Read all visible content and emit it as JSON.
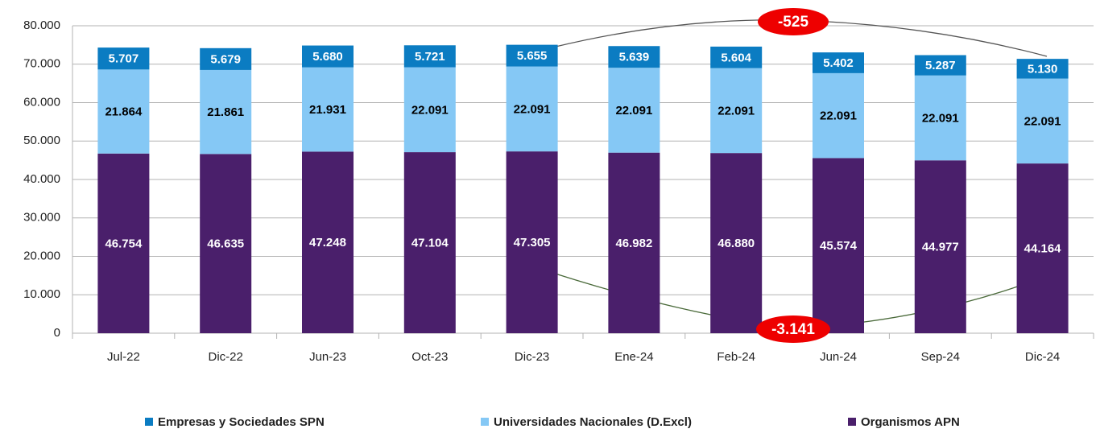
{
  "chart_data": {
    "type": "stacked_bar",
    "categories": [
      "Jul-22",
      "Dic-22",
      "Jun-23",
      "Oct-23",
      "Dic-23",
      "Ene-24",
      "Feb-24",
      "Jun-24",
      "Sep-24",
      "Dic-24"
    ],
    "series": [
      {
        "name": "Empresas y Sociedades SPN",
        "color": "#0b7cc2",
        "label_color": "#ffffff",
        "values": [
          5707,
          5679,
          5680,
          5721,
          5655,
          5639,
          5604,
          5402,
          5287,
          5130
        ],
        "value_labels": [
          "5.707",
          "5.679",
          "5.680",
          "5.721",
          "5.655",
          "5.639",
          "5.604",
          "5.402",
          "5.287",
          "5.130"
        ]
      },
      {
        "name": "Universidades Nacionales (D.Excl)",
        "color": "#85c8f5",
        "label_color": "#000000",
        "values": [
          21864,
          21861,
          21931,
          22091,
          22091,
          22091,
          22091,
          22091,
          22091,
          22091
        ],
        "value_labels": [
          "21.864",
          "21.861",
          "21.931",
          "22.091",
          "22.091",
          "22.091",
          "22.091",
          "22.091",
          "22.091",
          "22.091"
        ]
      },
      {
        "name": "Organismos APN",
        "color": "#4a1f6b",
        "label_color": "#ffffff",
        "values": [
          46754,
          46635,
          47248,
          47104,
          47305,
          46982,
          46880,
          45574,
          44977,
          44164
        ],
        "value_labels": [
          "46.754",
          "46.635",
          "47.248",
          "47.104",
          "47.305",
          "46.982",
          "46.880",
          "45.574",
          "44.977",
          "44.164"
        ]
      }
    ],
    "ylim": [
      0,
      80000
    ],
    "yticks": [
      0,
      {
        "value": 10000,
        "label": "10.000"
      },
      {
        "value": 20000,
        "label": "20.000"
      },
      {
        "value": 30000,
        "label": "30.000"
      },
      {
        "value": 40000,
        "label": "40.000"
      },
      {
        "value": 50000,
        "label": "50.000"
      },
      {
        "value": 60000,
        "label": "60.000"
      },
      {
        "value": 70000,
        "label": "70.000"
      },
      {
        "value": 80000,
        "label": "80.000"
      }
    ],
    "grid": true,
    "legend": "bottom",
    "annotations": [
      "-525",
      "-3.141"
    ]
  }
}
